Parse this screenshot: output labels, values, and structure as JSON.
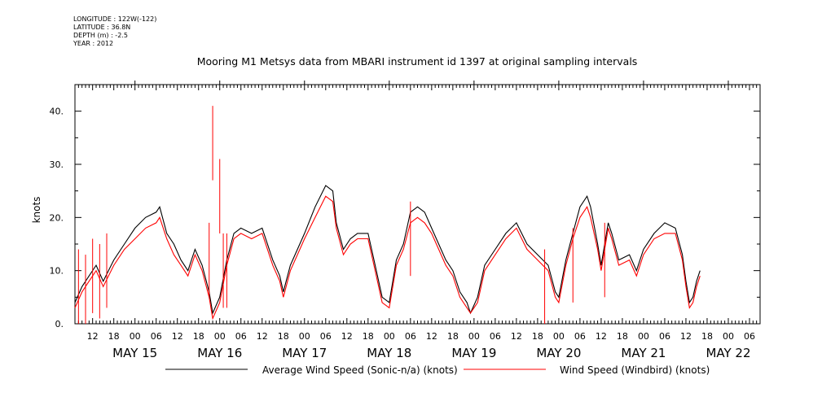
{
  "header": {
    "longitude": "LONGITUDE : 122W(-122)",
    "latitude": "LATITUDE : 36.8N",
    "depth": "DEPTH (m) : -2.5",
    "year": "YEAR : 2012"
  },
  "chart_data": {
    "type": "line",
    "title": "Mooring M1 Metsys data from MBARI instrument id 1397 at original sampling intervals",
    "ylabel": "knots",
    "xlabel": "",
    "xlim": [
      "2012-05-14T07:00",
      "2012-05-22T09:00"
    ],
    "ylim": [
      0,
      45
    ],
    "y_ticks": [
      0,
      10,
      20,
      30,
      40
    ],
    "y_tick_labels": [
      "0.",
      "10.",
      "20.",
      "30.",
      "40."
    ],
    "hour_labels": [
      "12",
      "18",
      "00",
      "06",
      "12",
      "18",
      "00",
      "06",
      "12",
      "18",
      "00",
      "06",
      "12",
      "18",
      "00",
      "06",
      "12",
      "18",
      "00",
      "06",
      "12",
      "18",
      "00",
      "06",
      "12",
      "18",
      "00",
      "06",
      "12",
      "18",
      "00",
      "06"
    ],
    "day_labels": [
      "MAY 15",
      "MAY 16",
      "MAY 17",
      "MAY 18",
      "MAY 19",
      "MAY 20",
      "MAY 21",
      "MAY 22"
    ],
    "legend_position": "bottom",
    "series": [
      {
        "name": "Average Wind Speed (Sonic-n/a) (knots)",
        "color": "#000000",
        "points": [
          [
            "2012-05-14T07:00",
            4
          ],
          [
            "2012-05-14T09:00",
            7
          ],
          [
            "2012-05-14T11:00",
            9
          ],
          [
            "2012-05-14T13:00",
            11
          ],
          [
            "2012-05-14T15:00",
            8
          ],
          [
            "2012-05-14T18:00",
            12
          ],
          [
            "2012-05-14T21:00",
            15
          ],
          [
            "2012-05-15T00:00",
            18
          ],
          [
            "2012-05-15T03:00",
            20
          ],
          [
            "2012-05-15T06:00",
            21
          ],
          [
            "2012-05-15T07:00",
            22
          ],
          [
            "2012-05-15T09:00",
            17
          ],
          [
            "2012-05-15T11:00",
            15
          ],
          [
            "2012-05-15T13:00",
            12
          ],
          [
            "2012-05-15T15:00",
            10
          ],
          [
            "2012-05-15T17:00",
            14
          ],
          [
            "2012-05-15T19:00",
            11
          ],
          [
            "2012-05-15T21:00",
            6
          ],
          [
            "2012-05-15T22:00",
            2
          ],
          [
            "2012-05-16T00:00",
            5
          ],
          [
            "2012-05-16T02:00",
            12
          ],
          [
            "2012-05-16T04:00",
            17
          ],
          [
            "2012-05-16T06:00",
            18
          ],
          [
            "2012-05-16T09:00",
            17
          ],
          [
            "2012-05-16T12:00",
            18
          ],
          [
            "2012-05-16T15:00",
            12
          ],
          [
            "2012-05-16T17:00",
            9
          ],
          [
            "2012-05-16T18:00",
            6
          ],
          [
            "2012-05-16T20:00",
            11
          ],
          [
            "2012-05-16T22:00",
            14
          ],
          [
            "2012-05-17T00:00",
            17
          ],
          [
            "2012-05-17T03:00",
            22
          ],
          [
            "2012-05-17T06:00",
            26
          ],
          [
            "2012-05-17T08:00",
            25
          ],
          [
            "2012-05-17T09:00",
            19
          ],
          [
            "2012-05-17T11:00",
            14
          ],
          [
            "2012-05-17T13:00",
            16
          ],
          [
            "2012-05-17T15:00",
            17
          ],
          [
            "2012-05-17T18:00",
            17
          ],
          [
            "2012-05-17T20:00",
            11
          ],
          [
            "2012-05-17T22:00",
            5
          ],
          [
            "2012-05-18T00:00",
            4
          ],
          [
            "2012-05-18T02:00",
            12
          ],
          [
            "2012-05-18T04:00",
            15
          ],
          [
            "2012-05-18T06:00",
            21
          ],
          [
            "2012-05-18T08:00",
            22
          ],
          [
            "2012-05-18T10:00",
            21
          ],
          [
            "2012-05-18T12:00",
            18
          ],
          [
            "2012-05-18T14:00",
            15
          ],
          [
            "2012-05-18T16:00",
            12
          ],
          [
            "2012-05-18T18:00",
            10
          ],
          [
            "2012-05-18T20:00",
            6
          ],
          [
            "2012-05-18T22:00",
            4
          ],
          [
            "2012-05-18T23:00",
            2
          ],
          [
            "2012-05-19T01:00",
            5
          ],
          [
            "2012-05-19T03:00",
            11
          ],
          [
            "2012-05-19T06:00",
            14
          ],
          [
            "2012-05-19T09:00",
            17
          ],
          [
            "2012-05-19T12:00",
            19
          ],
          [
            "2012-05-19T15:00",
            15
          ],
          [
            "2012-05-19T18:00",
            13
          ],
          [
            "2012-05-19T21:00",
            11
          ],
          [
            "2012-05-19T23:00",
            6
          ],
          [
            "2012-05-20T00:00",
            5
          ],
          [
            "2012-05-20T02:00",
            12
          ],
          [
            "2012-05-20T04:00",
            17
          ],
          [
            "2012-05-20T06:00",
            22
          ],
          [
            "2012-05-20T08:00",
            24
          ],
          [
            "2012-05-20T09:00",
            22
          ],
          [
            "2012-05-20T11:00",
            15
          ],
          [
            "2012-05-20T12:00",
            11
          ],
          [
            "2012-05-20T14:00",
            19
          ],
          [
            "2012-05-20T15:00",
            17
          ],
          [
            "2012-05-20T17:00",
            12
          ],
          [
            "2012-05-20T20:00",
            13
          ],
          [
            "2012-05-20T22:00",
            10
          ],
          [
            "2012-05-21T00:00",
            14
          ],
          [
            "2012-05-21T03:00",
            17
          ],
          [
            "2012-05-21T06:00",
            19
          ],
          [
            "2012-05-21T09:00",
            18
          ],
          [
            "2012-05-21T11:00",
            13
          ],
          [
            "2012-05-21T12:00",
            8
          ],
          [
            "2012-05-21T13:00",
            4
          ],
          [
            "2012-05-21T14:00",
            5
          ],
          [
            "2012-05-21T15:00",
            8
          ],
          [
            "2012-05-21T16:00",
            10
          ]
        ]
      },
      {
        "name": "Wind Speed (Windbird) (knots)",
        "color": "#ff0000",
        "points": [
          [
            "2012-05-14T07:00",
            3
          ],
          [
            "2012-05-14T09:00",
            6
          ],
          [
            "2012-05-14T11:00",
            8
          ],
          [
            "2012-05-14T13:00",
            10
          ],
          [
            "2012-05-14T15:00",
            7
          ],
          [
            "2012-05-14T18:00",
            11
          ],
          [
            "2012-05-14T21:00",
            14
          ],
          [
            "2012-05-15T00:00",
            16
          ],
          [
            "2012-05-15T03:00",
            18
          ],
          [
            "2012-05-15T06:00",
            19
          ],
          [
            "2012-05-15T07:00",
            20
          ],
          [
            "2012-05-15T09:00",
            16
          ],
          [
            "2012-05-15T11:00",
            13
          ],
          [
            "2012-05-15T13:00",
            11
          ],
          [
            "2012-05-15T15:00",
            9
          ],
          [
            "2012-05-15T17:00",
            13
          ],
          [
            "2012-05-15T19:00",
            10
          ],
          [
            "2012-05-15T21:00",
            5
          ],
          [
            "2012-05-15T22:00",
            1
          ],
          [
            "2012-05-16T00:00",
            4
          ],
          [
            "2012-05-16T02:00",
            11
          ],
          [
            "2012-05-16T04:00",
            16
          ],
          [
            "2012-05-16T06:00",
            17
          ],
          [
            "2012-05-16T09:00",
            16
          ],
          [
            "2012-05-16T12:00",
            17
          ],
          [
            "2012-05-16T15:00",
            11
          ],
          [
            "2012-05-16T17:00",
            8
          ],
          [
            "2012-05-16T18:00",
            5
          ],
          [
            "2012-05-16T20:00",
            10
          ],
          [
            "2012-05-16T22:00",
            13
          ],
          [
            "2012-05-17T00:00",
            16
          ],
          [
            "2012-05-17T03:00",
            20
          ],
          [
            "2012-05-17T06:00",
            24
          ],
          [
            "2012-05-17T08:00",
            23
          ],
          [
            "2012-05-17T09:00",
            18
          ],
          [
            "2012-05-17T11:00",
            13
          ],
          [
            "2012-05-17T13:00",
            15
          ],
          [
            "2012-05-17T15:00",
            16
          ],
          [
            "2012-05-17T18:00",
            16
          ],
          [
            "2012-05-17T20:00",
            10
          ],
          [
            "2012-05-17T22:00",
            4
          ],
          [
            "2012-05-18T00:00",
            3
          ],
          [
            "2012-05-18T02:00",
            11
          ],
          [
            "2012-05-18T04:00",
            14
          ],
          [
            "2012-05-18T06:00",
            19
          ],
          [
            "2012-05-18T08:00",
            20
          ],
          [
            "2012-05-18T10:00",
            19
          ],
          [
            "2012-05-18T12:00",
            17
          ],
          [
            "2012-05-18T14:00",
            14
          ],
          [
            "2012-05-18T16:00",
            11
          ],
          [
            "2012-05-18T18:00",
            9
          ],
          [
            "2012-05-18T20:00",
            5
          ],
          [
            "2012-05-18T22:00",
            3
          ],
          [
            "2012-05-18T23:00",
            2
          ],
          [
            "2012-05-19T01:00",
            4
          ],
          [
            "2012-05-19T03:00",
            10
          ],
          [
            "2012-05-19T06:00",
            13
          ],
          [
            "2012-05-19T09:00",
            16
          ],
          [
            "2012-05-19T12:00",
            18
          ],
          [
            "2012-05-19T15:00",
            14
          ],
          [
            "2012-05-19T18:00",
            12
          ],
          [
            "2012-05-19T21:00",
            10
          ],
          [
            "2012-05-19T23:00",
            5
          ],
          [
            "2012-05-20T00:00",
            4
          ],
          [
            "2012-05-20T02:00",
            11
          ],
          [
            "2012-05-20T04:00",
            16
          ],
          [
            "2012-05-20T06:00",
            20
          ],
          [
            "2012-05-20T08:00",
            22
          ],
          [
            "2012-05-20T09:00",
            20
          ],
          [
            "2012-05-20T11:00",
            14
          ],
          [
            "2012-05-20T12:00",
            10
          ],
          [
            "2012-05-20T14:00",
            18
          ],
          [
            "2012-05-20T15:00",
            16
          ],
          [
            "2012-05-20T17:00",
            11
          ],
          [
            "2012-05-20T20:00",
            12
          ],
          [
            "2012-05-20T22:00",
            9
          ],
          [
            "2012-05-21T00:00",
            13
          ],
          [
            "2012-05-21T03:00",
            16
          ],
          [
            "2012-05-21T06:00",
            17
          ],
          [
            "2012-05-21T09:00",
            17
          ],
          [
            "2012-05-21T11:00",
            12
          ],
          [
            "2012-05-21T12:00",
            7
          ],
          [
            "2012-05-21T13:00",
            3
          ],
          [
            "2012-05-21T14:00",
            4
          ],
          [
            "2012-05-21T15:00",
            7
          ],
          [
            "2012-05-21T16:00",
            9
          ]
        ],
        "spikes": [
          [
            "2012-05-15T21:00",
            19
          ],
          [
            "2012-05-15T22:00",
            41
          ],
          [
            "2012-05-16T00:00",
            31
          ],
          [
            "2012-05-16T01:00",
            17
          ],
          [
            "2012-05-16T02:00",
            17
          ],
          [
            "2012-05-14T08:00",
            14
          ],
          [
            "2012-05-14T10:00",
            13
          ],
          [
            "2012-05-14T12:00",
            16
          ],
          [
            "2012-05-14T14:00",
            15
          ],
          [
            "2012-05-14T16:00",
            17
          ],
          [
            "2012-05-18T06:00",
            23
          ],
          [
            "2012-05-19T20:00",
            14
          ],
          [
            "2012-05-20T04:00",
            18
          ],
          [
            "2012-05-20T13:00",
            19
          ]
        ]
      }
    ]
  }
}
